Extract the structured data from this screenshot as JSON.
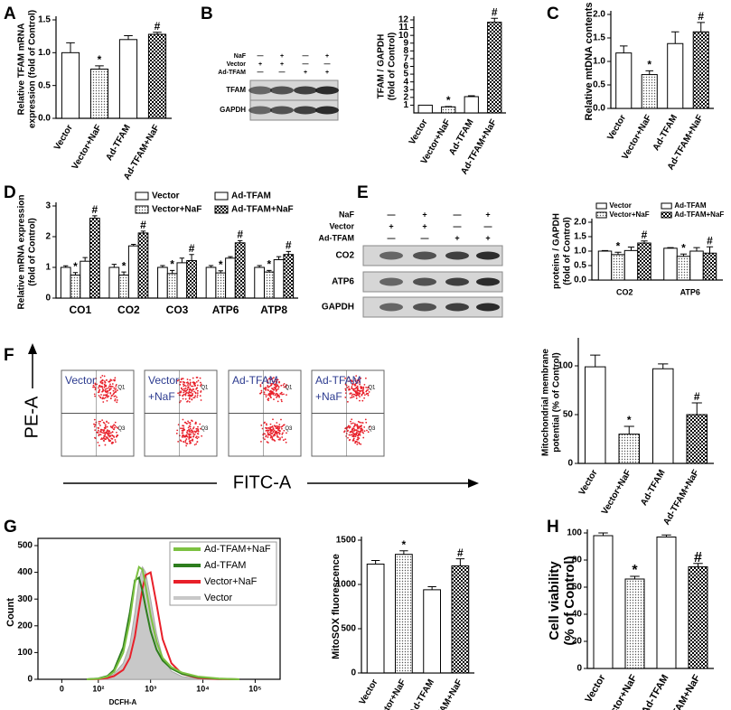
{
  "panel_labels": [
    "A",
    "B",
    "C",
    "D",
    "E",
    "F",
    "G",
    "H"
  ],
  "blots": {
    "B": {
      "rows": [
        {
          "label": "NaF",
          "signs": [
            "—",
            "+",
            "—",
            "+"
          ]
        },
        {
          "label": "Vector",
          "signs": [
            "+",
            "+",
            "—",
            "—"
          ]
        },
        {
          "label": "Ad-TFAM",
          "signs": [
            "—",
            "—",
            "+",
            "+"
          ]
        }
      ],
      "bands": [
        "TFAM",
        "GAPDH"
      ]
    },
    "E": {
      "rows": [
        {
          "label": "NaF",
          "signs": [
            "—",
            "+",
            "—",
            "+"
          ]
        },
        {
          "label": "Vector",
          "signs": [
            "+",
            "+",
            "—",
            "—"
          ]
        },
        {
          "label": "Ad-TFAM",
          "signs": [
            "—",
            "—",
            "+",
            "+"
          ]
        }
      ],
      "bands": [
        "CO2",
        "ATP6",
        "GAPDH"
      ]
    }
  },
  "flow": {
    "ylabel": "PE-A",
    "xlabel": "FITC-A",
    "panels": [
      [
        "Vector"
      ],
      [
        "Vector",
        "+NaF"
      ],
      [
        "Ad-TFAM"
      ],
      [
        "Ad-TFAM",
        "+NaF"
      ]
    ],
    "quadrants": [
      "Q1",
      "Q3"
    ]
  },
  "chart_data": [
    {
      "type": "bar",
      "ylabel": [
        "Relative TFAM mRNA",
        "expression (fold of Control)"
      ],
      "categories": [
        "Vector",
        "Vector+NaF",
        "Ad-TFAM",
        "Ad-TFAM+NaF"
      ],
      "values": [
        1.0,
        0.75,
        1.2,
        1.28
      ],
      "errors": [
        0.15,
        0.05,
        0.06,
        0.03
      ],
      "annotations": [
        null,
        "*",
        null,
        "#"
      ],
      "patterns": [
        "white",
        "dots",
        "white",
        "checker"
      ],
      "ylim": [
        0,
        1.5
      ],
      "yticks": [
        {
          "value": 0,
          "label": "0.0"
        },
        0.5,
        {
          "value": 1,
          "label": "1.0"
        },
        1.5
      ]
    },
    {
      "type": "bar",
      "ylabel": [
        "TFAM / GAPDH",
        "(fold of Control)"
      ],
      "categories": [
        "Vector",
        "Vector+NaF",
        "Ad-TFAM",
        "Ad-TFAM+NaF"
      ],
      "values": [
        1,
        0.78,
        2.1,
        11.7
      ],
      "errors": [
        null,
        0.05,
        0.12,
        0.5
      ],
      "annotations": [
        null,
        "*",
        null,
        "#"
      ],
      "patterns": [
        "white",
        "dots",
        "white",
        "checker"
      ],
      "ylim": [
        0,
        12
      ],
      "yticks": [
        1,
        2,
        3,
        4,
        5,
        6,
        7,
        8,
        9,
        10,
        11,
        12
      ]
    },
    {
      "type": "bar",
      "ylabel": [
        "Relative mtDNA contents"
      ],
      "categories": [
        "Vector",
        "Vector+NaF",
        "Ad-TFAM",
        "Ad-TFAM+NaF"
      ],
      "values": [
        1.18,
        0.72,
        1.38,
        1.63
      ],
      "errors": [
        0.15,
        0.08,
        0.25,
        0.2
      ],
      "annotations": [
        null,
        "*",
        null,
        "#"
      ],
      "patterns": [
        "white",
        "dots",
        "white",
        "checker"
      ],
      "ylim": [
        0,
        2
      ],
      "yticks": [
        {
          "value": 0,
          "label": "0.0"
        },
        0.5,
        {
          "value": 1,
          "label": "1.0"
        },
        1.5,
        {
          "value": 2,
          "label": "2.0"
        }
      ]
    },
    {
      "type": "grouped-bar",
      "ylabel": [
        "Relative mRNA expression",
        "(fold of Control)"
      ],
      "categories": [
        "CO1",
        "CO2",
        "CO3",
        "ATP6",
        "ATP8"
      ],
      "series": [
        {
          "name": "Vector",
          "pattern": "white",
          "values": [
            1,
            1,
            1,
            1,
            1
          ],
          "errors": [
            0.05,
            0.1,
            0.06,
            0.06,
            0.06
          ],
          "annotations": [
            null,
            null,
            null,
            null,
            null
          ]
        },
        {
          "name": "Vector+NaF",
          "pattern": "dots",
          "values": [
            0.75,
            0.75,
            0.8,
            0.82,
            0.85
          ],
          "errors": [
            0.08,
            0.1,
            0.1,
            0.07,
            0.05
          ],
          "annotations": [
            "*",
            "*",
            "*",
            "*",
            "*"
          ]
        },
        {
          "name": "Ad-TFAM",
          "pattern": "white",
          "values": [
            1.2,
            1.7,
            1.15,
            1.3,
            1.25
          ],
          "errors": [
            0.12,
            0.05,
            0.15,
            0.05,
            0.1
          ],
          "annotations": [
            null,
            null,
            null,
            null,
            null
          ]
        },
        {
          "name": "Ad-TFAM+NaF",
          "pattern": "checker",
          "values": [
            2.6,
            2.12,
            1.22,
            1.8,
            1.42
          ],
          "errors": [
            0.08,
            0.06,
            0.2,
            0.07,
            0.1
          ],
          "annotations": [
            "#",
            "#",
            "#",
            "#",
            "#"
          ]
        }
      ],
      "ylim": [
        0,
        3
      ],
      "yticks": [
        0,
        1,
        2,
        3
      ]
    },
    {
      "type": "grouped-bar",
      "ylabel": [
        "proteins / GAPDH",
        "(fold of Control)"
      ],
      "categories": [
        "CO2",
        "ATP6"
      ],
      "series": [
        {
          "name": "Vector",
          "pattern": "white",
          "values": [
            1,
            1.1
          ],
          "errors": [
            0.02,
            0.02
          ],
          "annotations": [
            null,
            null
          ]
        },
        {
          "name": "Vector+NaF",
          "pattern": "dots",
          "values": [
            0.88,
            0.82
          ],
          "errors": [
            0.08,
            0.08
          ],
          "annotations": [
            "*",
            "*"
          ]
        },
        {
          "name": "Ad-TFAM",
          "pattern": "white",
          "values": [
            1.02,
            1.0
          ],
          "errors": [
            0.12,
            0.12
          ],
          "annotations": [
            null,
            null
          ]
        },
        {
          "name": "Ad-TFAM+NaF",
          "pattern": "checker",
          "values": [
            1.28,
            0.93
          ],
          "errors": [
            0.07,
            0.22
          ],
          "annotations": [
            "#",
            "#"
          ]
        }
      ],
      "ylim": [
        0,
        2
      ],
      "yticks": [
        {
          "value": 0,
          "label": "0.0"
        },
        0.5,
        {
          "value": 1,
          "label": "1.0"
        },
        1.5,
        {
          "value": 2,
          "label": "2.0"
        }
      ]
    },
    {
      "type": "bar",
      "ylabel": [
        "Mitochondrial membrane",
        "potential (% of Control)"
      ],
      "categories": [
        "Vector",
        "Vector+NaF",
        "Ad-TFAM",
        "Ad-TFAM+NaF"
      ],
      "values": [
        99,
        30,
        97,
        50
      ],
      "errors": [
        12,
        8,
        5,
        12
      ],
      "annotations": [
        null,
        "*",
        null,
        "#"
      ],
      "patterns": [
        "white",
        "dots",
        "white",
        "checker"
      ],
      "ylim": [
        0,
        125
      ],
      "yticks": [
        0,
        50,
        100
      ]
    },
    {
      "type": "line",
      "ylabel": [
        "Count"
      ],
      "xlabel": "DCFH-A",
      "xscale": "log",
      "x": [
        60,
        100,
        150,
        200,
        300,
        400,
        500,
        600,
        700,
        800,
        1000,
        1300,
        1700,
        2500,
        4000,
        8000,
        20000,
        50000
      ],
      "series": [
        {
          "name": "Ad-TFAM+NaF",
          "color": "#7dc142",
          "values": [
            0,
            2,
            10,
            28,
            100,
            220,
            360,
            420,
            410,
            350,
            240,
            140,
            80,
            45,
            25,
            10,
            3,
            0
          ]
        },
        {
          "name": "Ad-TFAM",
          "color": "#2e7d1e",
          "values": [
            0,
            3,
            12,
            35,
            120,
            250,
            370,
            380,
            330,
            270,
            180,
            110,
            70,
            40,
            20,
            8,
            2,
            0
          ]
        },
        {
          "name": "Vector+NaF",
          "color": "#e8202a",
          "values": [
            0,
            1,
            5,
            12,
            35,
            80,
            160,
            260,
            340,
            390,
            400,
            280,
            150,
            60,
            20,
            5,
            1,
            0
          ]
        },
        {
          "name": "Vector",
          "color": "#c8c8c8",
          "filled": true,
          "values": [
            0,
            2,
            8,
            20,
            60,
            130,
            250,
            370,
            420,
            400,
            300,
            170,
            80,
            30,
            10,
            3,
            1,
            0
          ]
        }
      ],
      "xlim": [
        7,
        300000
      ],
      "xticks": [
        {
          "value": 20,
          "label": "0"
        },
        {
          "value": 100,
          "label": "10²"
        },
        {
          "value": 1000,
          "label": "10³"
        },
        {
          "value": 10000,
          "label": "10⁴"
        },
        {
          "value": 100000,
          "label": "10⁵"
        }
      ],
      "ylim": [
        0,
        500
      ],
      "yticks": [
        0,
        100,
        200,
        300,
        400,
        500
      ]
    },
    {
      "type": "bar",
      "ylabel": [
        "MitoSOX fluorescence"
      ],
      "categories": [
        "Vector",
        "Vector+NaF",
        "Ad-TFAM",
        "Ad-TFAM+NaF"
      ],
      "values": [
        1230,
        1340,
        940,
        1210
      ],
      "errors": [
        40,
        40,
        35,
        80
      ],
      "annotations": [
        null,
        "*",
        null,
        "#"
      ],
      "patterns": [
        "white",
        "dots",
        "white",
        "checker"
      ],
      "ylim": [
        0,
        1500
      ],
      "yticks": [
        0,
        500,
        1000,
        1500
      ]
    },
    {
      "type": "bar",
      "ylabel": [
        "Cell viability",
        "(% of Control)"
      ],
      "categories": [
        "Vector",
        "Vector+NaF",
        "Ad-TFAM",
        "Ad-TFAM+NaF"
      ],
      "values": [
        98,
        66,
        97,
        75
      ],
      "errors": [
        2,
        2,
        1.5,
        2.5
      ],
      "annotations": [
        null,
        "*",
        null,
        "#"
      ],
      "patterns": [
        "white",
        "dots",
        "white",
        "checker"
      ],
      "ylim": [
        0,
        100
      ],
      "yticks": [
        0,
        20,
        40,
        60,
        80,
        100
      ]
    }
  ]
}
